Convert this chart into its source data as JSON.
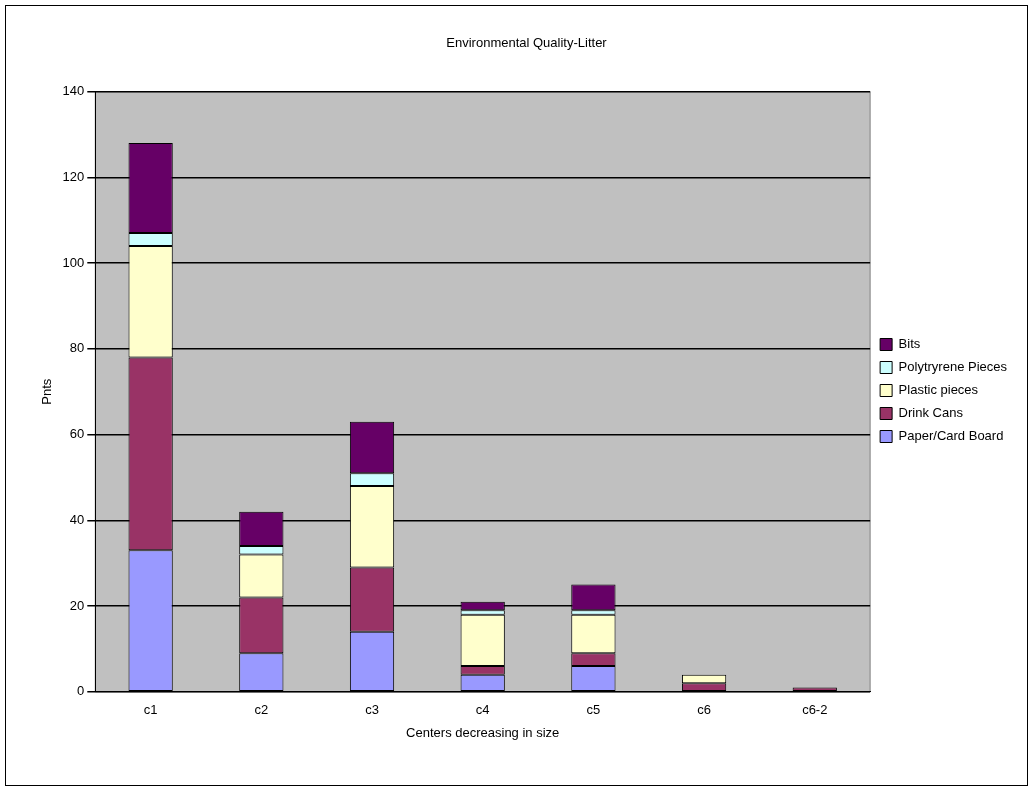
{
  "chart_data": {
    "type": "bar",
    "title": "Environmental Quality-Litter",
    "xlabel": "Centers decreasing in size",
    "ylabel": "Pnts",
    "categories": [
      "c1",
      "c2",
      "c3",
      "c4",
      "c5",
      "c6",
      "c6-2"
    ],
    "stacked": true,
    "ylim": [
      0,
      140
    ],
    "yticks": [
      0,
      20,
      40,
      60,
      80,
      100,
      120,
      140
    ],
    "grid": "y",
    "legend": "right",
    "series": [
      {
        "name": "Paper/Card Board",
        "color": "#9999ff",
        "values": [
          33,
          9,
          14,
          4,
          6,
          0,
          0
        ]
      },
      {
        "name": "Drink Cans",
        "color": "#993366",
        "values": [
          45,
          13,
          15,
          2,
          3,
          2,
          1
        ]
      },
      {
        "name": "Plastic pieces",
        "color": "#ffffcc",
        "values": [
          26,
          10,
          19,
          12,
          9,
          2,
          0
        ]
      },
      {
        "name": "Polytryrene Pieces",
        "color": "#ccffff",
        "values": [
          3,
          2,
          3,
          1,
          1,
          0,
          0
        ]
      },
      {
        "name": "Bits",
        "color": "#660066",
        "values": [
          21,
          8,
          12,
          2,
          6,
          0,
          0
        ]
      }
    ]
  }
}
